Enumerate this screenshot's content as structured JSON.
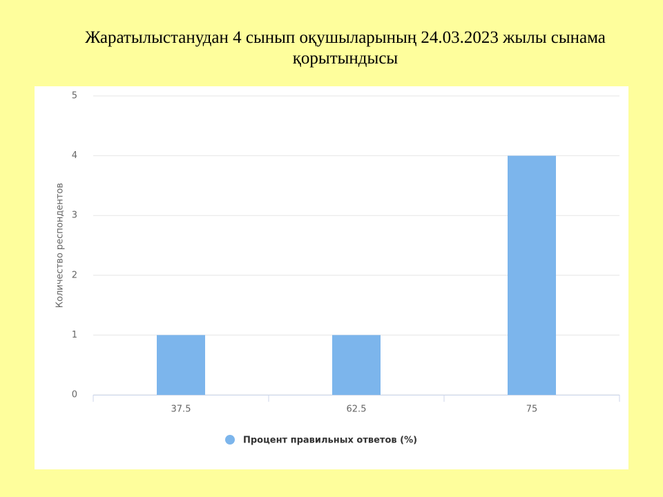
{
  "chart_data": {
    "type": "bar",
    "title": "Жаратылыстанудан 4 сынып оқушыларының 24.03.2023 жылы сынама қорытындысы",
    "y_label": "Количество респондентов",
    "categories": [
      "37.5",
      "62.5",
      "75"
    ],
    "series": [
      {
        "name": "Процент правильных ответов (%)",
        "color": "#7cb5ec",
        "values": [
          1,
          1,
          4
        ]
      }
    ],
    "ylim": [
      0,
      5
    ],
    "yticks": [
      0,
      1,
      2,
      3,
      4,
      5
    ],
    "grid": true,
    "legend": "bottom"
  }
}
